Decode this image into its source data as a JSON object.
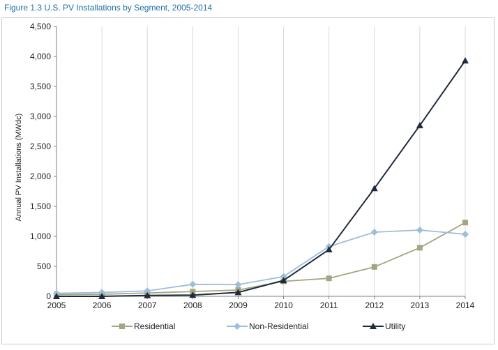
{
  "figure_title": "Figure 1.3  U.S. PV Installations by Segment, 2005-2014",
  "chart_data": {
    "type": "line",
    "title": "",
    "xlabel": "",
    "ylabel": "Annual PV Installations (MWdc)",
    "x": [
      "2005",
      "2006",
      "2007",
      "2008",
      "2009",
      "2010",
      "2011",
      "2012",
      "2013",
      "2014"
    ],
    "ylim": [
      0,
      4500
    ],
    "yticks": [
      0,
      500,
      1000,
      1500,
      2000,
      2500,
      3000,
      3500,
      4000,
      4500
    ],
    "ytick_labels": [
      "0",
      "500",
      "1,000",
      "1,500",
      "2,000",
      "2,500",
      "3,000",
      "3,500",
      "4,000",
      "4,500"
    ],
    "grid": "vertical",
    "legend_position": "bottom",
    "series": [
      {
        "name": "Residential",
        "color": "#a3a67e",
        "marker": "square",
        "values": [
          30,
          35,
          55,
          80,
          105,
          250,
          300,
          490,
          810,
          1230
        ]
      },
      {
        "name": "Non-Residential",
        "color": "#9dbdd9",
        "marker": "diamond",
        "values": [
          50,
          65,
          90,
          200,
          195,
          330,
          830,
          1070,
          1105,
          1035
        ]
      },
      {
        "name": "Utility",
        "color": "#1f2a3d",
        "marker": "triangle",
        "values": [
          0,
          0,
          15,
          20,
          65,
          265,
          780,
          1800,
          2850,
          3930
        ]
      }
    ]
  }
}
